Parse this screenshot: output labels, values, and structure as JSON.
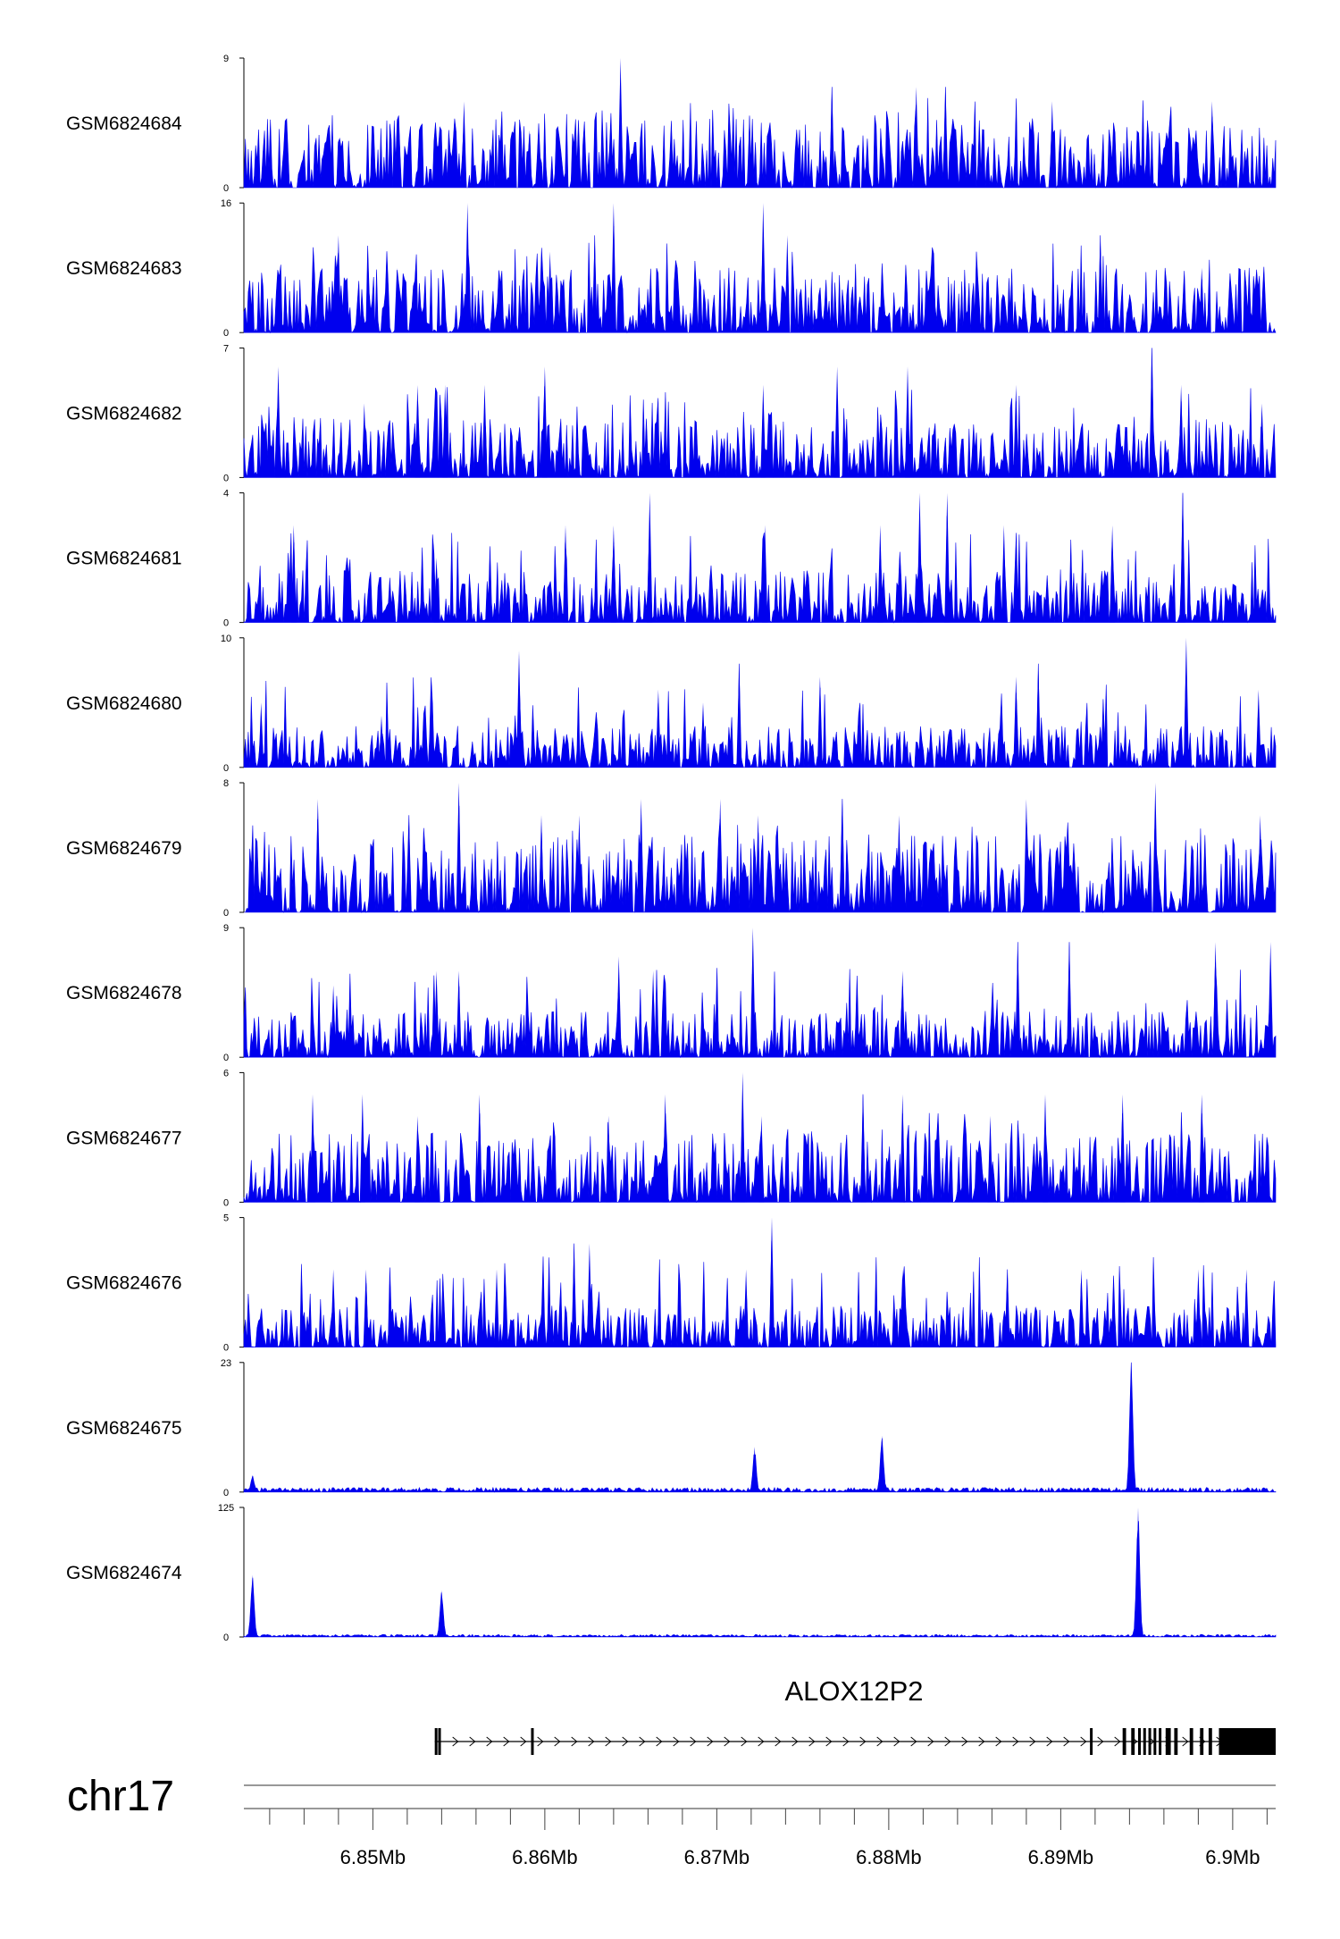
{
  "chart_data": {
    "type": "area",
    "chromosome": "chr17",
    "x_range": [
      6842500,
      6902500
    ],
    "x_ticks": [
      6850000,
      6860000,
      6870000,
      6880000,
      6890000,
      6900000
    ],
    "x_tick_labels": [
      "6.85Mb",
      "6.86Mb",
      "6.87Mb",
      "6.88Mb",
      "6.89Mb",
      "6.9Mb"
    ],
    "fill_color": "#0000ee",
    "tracks": [
      {
        "name": "GSM6824684",
        "ymax": 9,
        "ymin": 0,
        "peaks": [
          [
            6847500,
            4
          ],
          [
            6851500,
            5
          ],
          [
            6852700,
            4
          ],
          [
            6855300,
            6
          ],
          [
            6859100,
            4
          ],
          [
            6864400,
            9
          ],
          [
            6871900,
            5
          ],
          [
            6876700,
            7
          ],
          [
            6881600,
            7
          ],
          [
            6883300,
            7
          ],
          [
            6889500,
            6
          ],
          [
            6898800,
            6
          ]
        ],
        "background": 3
      },
      {
        "name": "GSM6824683",
        "ymax": 16,
        "ymin": 0,
        "peaks": [
          [
            6848000,
            12
          ],
          [
            6851400,
            8
          ],
          [
            6855500,
            16
          ],
          [
            6860300,
            10
          ],
          [
            6862900,
            12
          ],
          [
            6864000,
            16
          ],
          [
            6870700,
            8
          ],
          [
            6872700,
            16
          ],
          [
            6874100,
            12
          ],
          [
            6885100,
            10
          ],
          [
            6892300,
            12
          ],
          [
            6898200,
            8
          ]
        ],
        "background": 5
      },
      {
        "name": "GSM6824682",
        "ymax": 7,
        "ymin": 0,
        "peaks": [
          [
            6844500,
            6
          ],
          [
            6849500,
            4
          ],
          [
            6852600,
            5
          ],
          [
            6854200,
            5
          ],
          [
            6856500,
            5
          ],
          [
            6860000,
            6
          ],
          [
            6872700,
            5
          ],
          [
            6877000,
            6
          ],
          [
            6881100,
            6
          ],
          [
            6887400,
            5
          ],
          [
            6895300,
            7
          ],
          [
            6897000,
            5
          ],
          [
            6901700,
            4
          ]
        ],
        "background": 2
      },
      {
        "name": "GSM6824681",
        "ymax": 4,
        "ymin": 0,
        "peaks": [
          [
            6845400,
            3
          ],
          [
            6848500,
            2
          ],
          [
            6853700,
            2
          ],
          [
            6861200,
            3
          ],
          [
            6864000,
            3
          ],
          [
            6866100,
            4
          ],
          [
            6872800,
            3
          ],
          [
            6879500,
            3
          ],
          [
            6881800,
            4
          ],
          [
            6883400,
            4
          ],
          [
            6886700,
            3
          ],
          [
            6893000,
            3
          ],
          [
            6897100,
            4
          ]
        ],
        "background": 1
      },
      {
        "name": "GSM6824680",
        "ymax": 10,
        "ymin": 0,
        "peaks": [
          [
            6843500,
            5
          ],
          [
            6850500,
            4
          ],
          [
            6858500,
            9
          ],
          [
            6866600,
            6
          ],
          [
            6869200,
            5
          ],
          [
            6871300,
            8
          ],
          [
            6876000,
            7
          ],
          [
            6887400,
            7
          ],
          [
            6888700,
            8
          ],
          [
            6897300,
            10
          ],
          [
            6901500,
            6
          ]
        ],
        "background": 2
      },
      {
        "name": "GSM6824679",
        "ymax": 8,
        "ymin": 0,
        "peaks": [
          [
            6846800,
            7
          ],
          [
            6852100,
            6
          ],
          [
            6855000,
            8
          ],
          [
            6859800,
            6
          ],
          [
            6862000,
            6
          ],
          [
            6865600,
            7
          ],
          [
            6870200,
            7
          ],
          [
            6872400,
            6
          ],
          [
            6877300,
            7
          ],
          [
            6880600,
            6
          ],
          [
            6888000,
            7
          ],
          [
            6895500,
            8
          ],
          [
            6901600,
            6
          ]
        ],
        "background": 3
      },
      {
        "name": "GSM6824678",
        "ymax": 9,
        "ymin": 0,
        "peaks": [
          [
            6847700,
            5
          ],
          [
            6853700,
            6
          ],
          [
            6855000,
            6
          ],
          [
            6864300,
            7
          ],
          [
            6866300,
            6
          ],
          [
            6872100,
            9
          ],
          [
            6880800,
            6
          ],
          [
            6887500,
            8
          ],
          [
            6890500,
            8
          ],
          [
            6899000,
            8
          ],
          [
            6902200,
            8
          ]
        ],
        "background": 2
      },
      {
        "name": "GSM6824677",
        "ymax": 6,
        "ymin": 0,
        "peaks": [
          [
            6846500,
            5
          ],
          [
            6849400,
            5
          ],
          [
            6852600,
            4
          ],
          [
            6856200,
            5
          ],
          [
            6863700,
            4
          ],
          [
            6867000,
            5
          ],
          [
            6871500,
            6
          ],
          [
            6872600,
            4
          ],
          [
            6878500,
            5
          ],
          [
            6880800,
            5
          ],
          [
            6885900,
            4
          ],
          [
            6889100,
            5
          ],
          [
            6893600,
            5
          ],
          [
            6898200,
            5
          ]
        ],
        "background": 2
      },
      {
        "name": "GSM6824676",
        "ymax": 5,
        "ymin": 0,
        "peaks": [
          [
            6847700,
            3
          ],
          [
            6849600,
            3
          ],
          [
            6857200,
            3
          ],
          [
            6861700,
            4
          ],
          [
            6862600,
            4
          ],
          [
            6871700,
            3
          ],
          [
            6873200,
            5
          ],
          [
            6880800,
            3
          ],
          [
            6886900,
            3
          ],
          [
            6891200,
            3
          ],
          [
            6898000,
            3
          ],
          [
            6900800,
            3
          ]
        ],
        "background": 1
      },
      {
        "name": "GSM6824675",
        "ymax": 23,
        "ymin": 0,
        "peaks": [
          [
            6843000,
            3
          ],
          [
            6872200,
            8
          ],
          [
            6879600,
            10
          ],
          [
            6894100,
            23
          ]
        ],
        "background": 1
      },
      {
        "name": "GSM6824674",
        "ymax": 125,
        "ymin": 0,
        "peaks": [
          [
            6843000,
            60
          ],
          [
            6854000,
            45
          ],
          [
            6894500,
            125
          ]
        ],
        "background": 3
      }
    ],
    "gene": {
      "name": "ALOX12P2",
      "start": 6853600,
      "end": 6902500,
      "strand": "+",
      "exons": [
        [
          6853600,
          6853700
        ],
        [
          6853800,
          6853900
        ],
        [
          6859200,
          6859300
        ],
        [
          6891700,
          6891800
        ],
        [
          6893600,
          6893800
        ],
        [
          6894100,
          6894300
        ],
        [
          6894500,
          6894600
        ],
        [
          6894800,
          6894900
        ],
        [
          6895100,
          6895200
        ],
        [
          6895400,
          6895500
        ],
        [
          6895700,
          6895800
        ],
        [
          6896100,
          6896400
        ],
        [
          6896600,
          6896800
        ],
        [
          6897500,
          6897700
        ],
        [
          6898100,
          6898300
        ],
        [
          6898600,
          6898800
        ],
        [
          6899200,
          6902500
        ]
      ]
    }
  }
}
